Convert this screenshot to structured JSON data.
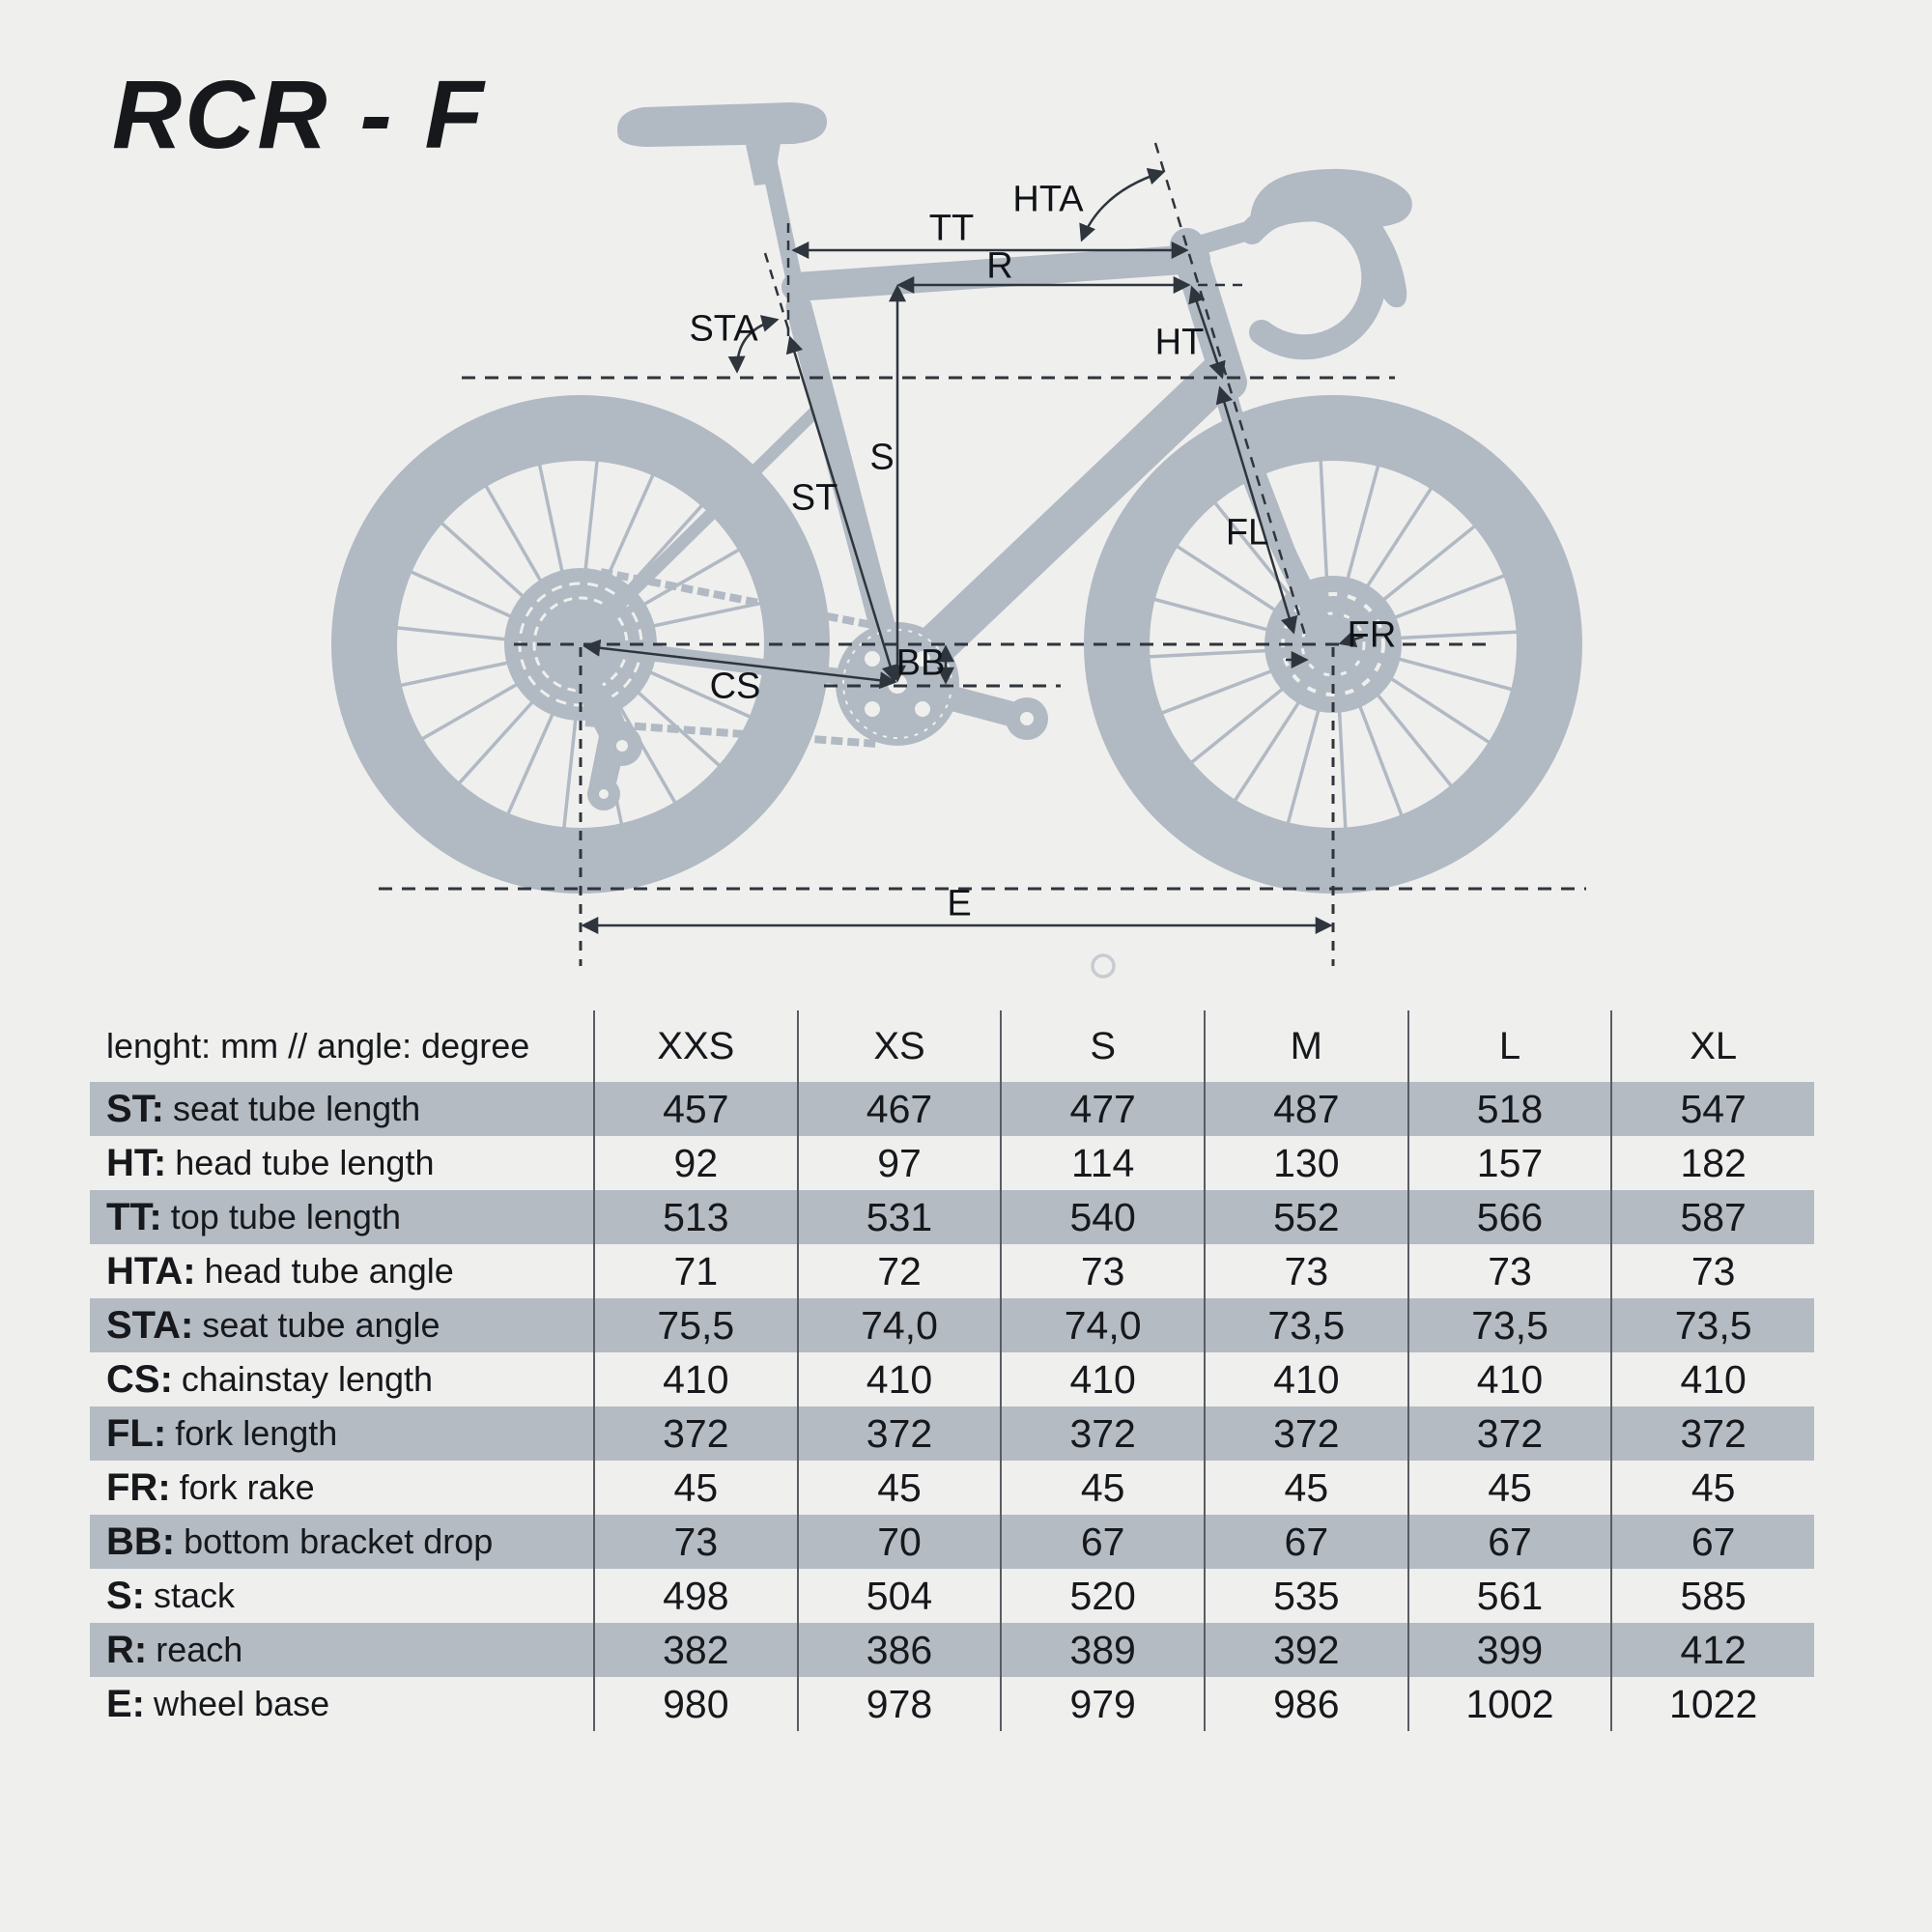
{
  "title": "RCR - F",
  "colors": {
    "background": "#efefee",
    "bike_silhouette": "#b1b9c3",
    "table_row_shade": "#b4bbc3",
    "dimension_line": "#2f353c",
    "text": "#16181b"
  },
  "diagram": {
    "labels": {
      "hta": "HTA",
      "tt": "TT",
      "r": "R",
      "sta": "STA",
      "ht": "HT",
      "s": "S",
      "st": "ST",
      "fl": "FL",
      "bb": "BB",
      "cs": "CS",
      "fr": "FR",
      "e": "E"
    }
  },
  "table": {
    "header": {
      "label": "lenght: mm // angle: degree",
      "sizes": [
        "XXS",
        "XS",
        "S",
        "M",
        "L",
        "XL"
      ]
    },
    "rows": [
      {
        "prefix": "ST:",
        "label": "seat tube length",
        "values": [
          "457",
          "467",
          "477",
          "487",
          "518",
          "547"
        ],
        "shaded": true
      },
      {
        "prefix": "HT:",
        "label": "head tube length",
        "values": [
          "92",
          "97",
          "114",
          "130",
          "157",
          "182"
        ],
        "shaded": false
      },
      {
        "prefix": "TT:",
        "label": "top tube length",
        "values": [
          "513",
          "531",
          "540",
          "552",
          "566",
          "587"
        ],
        "shaded": true
      },
      {
        "prefix": "HTA:",
        "label": "head tube angle",
        "values": [
          "71",
          "72",
          "73",
          "73",
          "73",
          "73"
        ],
        "shaded": false
      },
      {
        "prefix": "STA:",
        "label": "seat tube angle",
        "values": [
          "75,5",
          "74,0",
          "74,0",
          "73,5",
          "73,5",
          "73,5"
        ],
        "shaded": true
      },
      {
        "prefix": "CS:",
        "label": "chainstay length",
        "values": [
          "410",
          "410",
          "410",
          "410",
          "410",
          "410"
        ],
        "shaded": false
      },
      {
        "prefix": "FL:",
        "label": "fork length",
        "values": [
          "372",
          "372",
          "372",
          "372",
          "372",
          "372"
        ],
        "shaded": true
      },
      {
        "prefix": "FR:",
        "label": "fork rake",
        "values": [
          "45",
          "45",
          "45",
          "45",
          "45",
          "45"
        ],
        "shaded": false
      },
      {
        "prefix": "BB:",
        "label": "bottom bracket drop",
        "values": [
          "73",
          "70",
          "67",
          "67",
          "67",
          "67"
        ],
        "shaded": true
      },
      {
        "prefix": "S:",
        "label": "stack",
        "values": [
          "498",
          "504",
          "520",
          "535",
          "561",
          "585"
        ],
        "shaded": false
      },
      {
        "prefix": "R:",
        "label": "reach",
        "values": [
          "382",
          "386",
          "389",
          "392",
          "399",
          "412"
        ],
        "shaded": true
      },
      {
        "prefix": "E:",
        "label": "wheel base",
        "values": [
          "980",
          "978",
          "979",
          "986",
          "1002",
          "1022"
        ],
        "shaded": false
      }
    ]
  }
}
